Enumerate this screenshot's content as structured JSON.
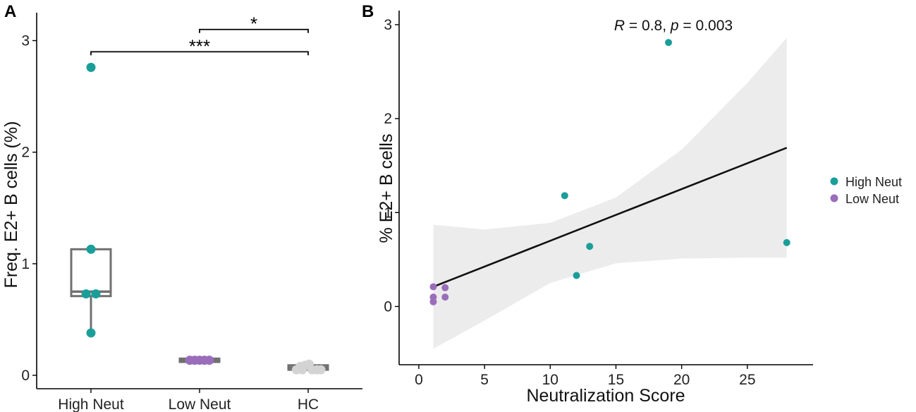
{
  "chart_data": [
    {
      "panel": "A",
      "type": "box",
      "ylabel": "Freq. E2+ B cells (%)",
      "ylim": [
        -0.12,
        3.25
      ],
      "yticks": [
        0,
        1,
        2,
        3
      ],
      "categories": [
        "High Neut",
        "Low Neut",
        "HC"
      ],
      "boxes": [
        {
          "name": "High Neut",
          "q1": 0.71,
          "median": 0.75,
          "q3": 1.13,
          "whisker_low": 0.38,
          "whisker_high": 1.13
        },
        {
          "name": "Low Neut",
          "q1": 0.12,
          "median": 0.135,
          "q3": 0.15,
          "whisker_low": 0.12,
          "whisker_high": 0.15
        },
        {
          "name": "HC",
          "q1": 0.05,
          "median": 0.07,
          "q3": 0.09,
          "whisker_low": 0.04,
          "whisker_high": 0.1
        }
      ],
      "points": [
        {
          "group": "High Neut",
          "value": 2.76,
          "dx": 0
        },
        {
          "group": "High Neut",
          "value": 1.13,
          "dx": 0
        },
        {
          "group": "High Neut",
          "value": 0.73,
          "dx": -0.1
        },
        {
          "group": "High Neut",
          "value": 0.73,
          "dx": 0.1
        },
        {
          "group": "High Neut",
          "value": 0.38,
          "dx": 0
        },
        {
          "group": "Low Neut",
          "value": 0.135,
          "dx": -0.2
        },
        {
          "group": "Low Neut",
          "value": 0.135,
          "dx": -0.1
        },
        {
          "group": "Low Neut",
          "value": 0.135,
          "dx": 0
        },
        {
          "group": "Low Neut",
          "value": 0.135,
          "dx": 0.1
        },
        {
          "group": "Low Neut",
          "value": 0.135,
          "dx": 0.2
        },
        {
          "group": "HC",
          "value": 0.05,
          "dx": -0.24
        },
        {
          "group": "HC",
          "value": 0.05,
          "dx": -0.12
        },
        {
          "group": "HC",
          "value": 0.09,
          "dx": -0.06
        },
        {
          "group": "HC",
          "value": 0.1,
          "dx": 0.02
        },
        {
          "group": "HC",
          "value": 0.05,
          "dx": 0.08
        },
        {
          "group": "HC",
          "value": 0.05,
          "dx": 0.18
        },
        {
          "group": "HC",
          "value": 0.05,
          "dx": 0.26
        },
        {
          "group": "HC",
          "value": 0.08,
          "dx": -0.16
        }
      ],
      "significance": [
        {
          "from": "Low Neut",
          "to": "HC",
          "y": 3.1,
          "label": "*"
        },
        {
          "from": "High Neut",
          "to": "HC",
          "y": 2.9,
          "label": "***"
        }
      ]
    },
    {
      "panel": "B",
      "type": "scatter",
      "xlabel": "Neutralization Score",
      "ylabel": "% E2+ B cells",
      "xlim": [
        -1.5,
        30
      ],
      "ylim": [
        -0.62,
        3.15
      ],
      "xticks": [
        0,
        5,
        10,
        15,
        20,
        25
      ],
      "yticks": [
        0,
        1,
        2,
        3
      ],
      "annotation": {
        "r_label": "R",
        "r_value": " = 0.8, ",
        "p_label": "p",
        "p_value": " = 0.003"
      },
      "series": [
        {
          "name": "High Neut",
          "color": "#1a9e9a",
          "points": [
            [
              19,
              2.81
            ],
            [
              11.1,
              1.18
            ],
            [
              13,
              0.64
            ],
            [
              12,
              0.33
            ],
            [
              28,
              0.68
            ]
          ]
        },
        {
          "name": "Low Neut",
          "color": "#9a6dbb",
          "points": [
            [
              1.1,
              0.21
            ],
            [
              1.1,
              0.1
            ],
            [
              1.1,
              0.05
            ],
            [
              2,
              0.2
            ],
            [
              2,
              0.1
            ]
          ]
        }
      ],
      "fit_line": {
        "x": [
          1.1,
          28
        ],
        "y": [
          0.21,
          1.69
        ]
      },
      "confidence_band": {
        "x": [
          1.1,
          5,
          10,
          15,
          20,
          25,
          28
        ],
        "upper": [
          0.87,
          0.82,
          0.89,
          1.16,
          1.67,
          2.38,
          2.86
        ],
        "lower": [
          -0.45,
          -0.15,
          0.25,
          0.46,
          0.51,
          0.52,
          0.52
        ]
      }
    }
  ],
  "panel_labels": {
    "a": "A",
    "b": "B"
  },
  "legend": [
    {
      "label": "High Neut",
      "color": "#1a9e9a"
    },
    {
      "label": "Low Neut",
      "color": "#9a6dbb"
    }
  ],
  "colors": {
    "high": "#1a9e9a",
    "low": "#9a6dbb",
    "hc": "#d3d3d3",
    "band": "#ececec"
  }
}
